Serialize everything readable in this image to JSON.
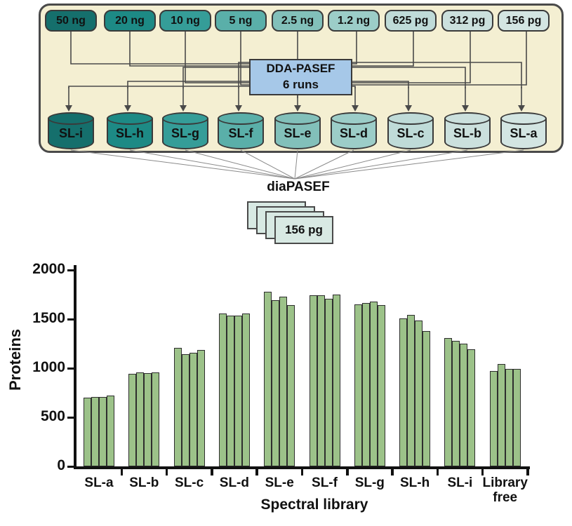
{
  "diagram": {
    "panel_bg": "#f4efd2",
    "panel_border": "#4a4a4a",
    "sample_boxes": [
      {
        "label": "50 ng",
        "color": "#156f6c"
      },
      {
        "label": "20 ng",
        "color": "#1d8a85"
      },
      {
        "label": "10 ng",
        "color": "#359d98"
      },
      {
        "label": "5 ng",
        "color": "#5aafa9"
      },
      {
        "label": "2.5 ng",
        "color": "#82c0ba"
      },
      {
        "label": "1.2 ng",
        "color": "#9ccdc8"
      },
      {
        "label": "625 pg",
        "color": "#bfdbd8"
      },
      {
        "label": "312 pg",
        "color": "#cbe0dd"
      },
      {
        "label": "156 pg",
        "color": "#d3e5e2"
      }
    ],
    "dda_box": {
      "line1": "DDA-PASEF",
      "line2": "6 runs",
      "color": "#a6c8e8"
    },
    "libraries": [
      {
        "label": "SL-i",
        "color": "#156f6c"
      },
      {
        "label": "SL-h",
        "color": "#1d8a85"
      },
      {
        "label": "SL-g",
        "color": "#359d98"
      },
      {
        "label": "SL-f",
        "color": "#5aafa9"
      },
      {
        "label": "SL-e",
        "color": "#82c0ba"
      },
      {
        "label": "SL-d",
        "color": "#9ccdc8"
      },
      {
        "label": "SL-c",
        "color": "#bfdbd8"
      },
      {
        "label": "SL-b",
        "color": "#cbe0dd"
      },
      {
        "label": "SL-a",
        "color": "#d3e5e2"
      }
    ],
    "dia_label": "diaPASEF",
    "stack_label": "156 pg",
    "stack_color": "#d8e9e3"
  },
  "chart_data": {
    "type": "bar",
    "title": "",
    "xlabel": "Spectral library",
    "ylabel": "Proteins",
    "ylim": [
      0,
      2000
    ],
    "yticks": [
      0,
      500,
      1000,
      1500,
      2000
    ],
    "grid": false,
    "legend": "none",
    "bar_color": "#9cc289",
    "bars_per_group": 4,
    "categories": [
      "SL-a",
      "SL-b",
      "SL-c",
      "SL-d",
      "SL-e",
      "SL-f",
      "SL-g",
      "SL-h",
      "SL-i",
      "Library free"
    ],
    "values": [
      [
        700,
        710,
        705,
        720
      ],
      [
        945,
        955,
        950,
        960
      ],
      [
        1210,
        1145,
        1160,
        1185
      ],
      [
        1560,
        1535,
        1535,
        1560
      ],
      [
        1780,
        1690,
        1730,
        1645
      ],
      [
        1740,
        1740,
        1710,
        1750
      ],
      [
        1650,
        1665,
        1680,
        1645
      ],
      [
        1510,
        1540,
        1485,
        1380
      ],
      [
        1305,
        1280,
        1250,
        1195
      ],
      [
        975,
        1045,
        995,
        995
      ]
    ]
  }
}
